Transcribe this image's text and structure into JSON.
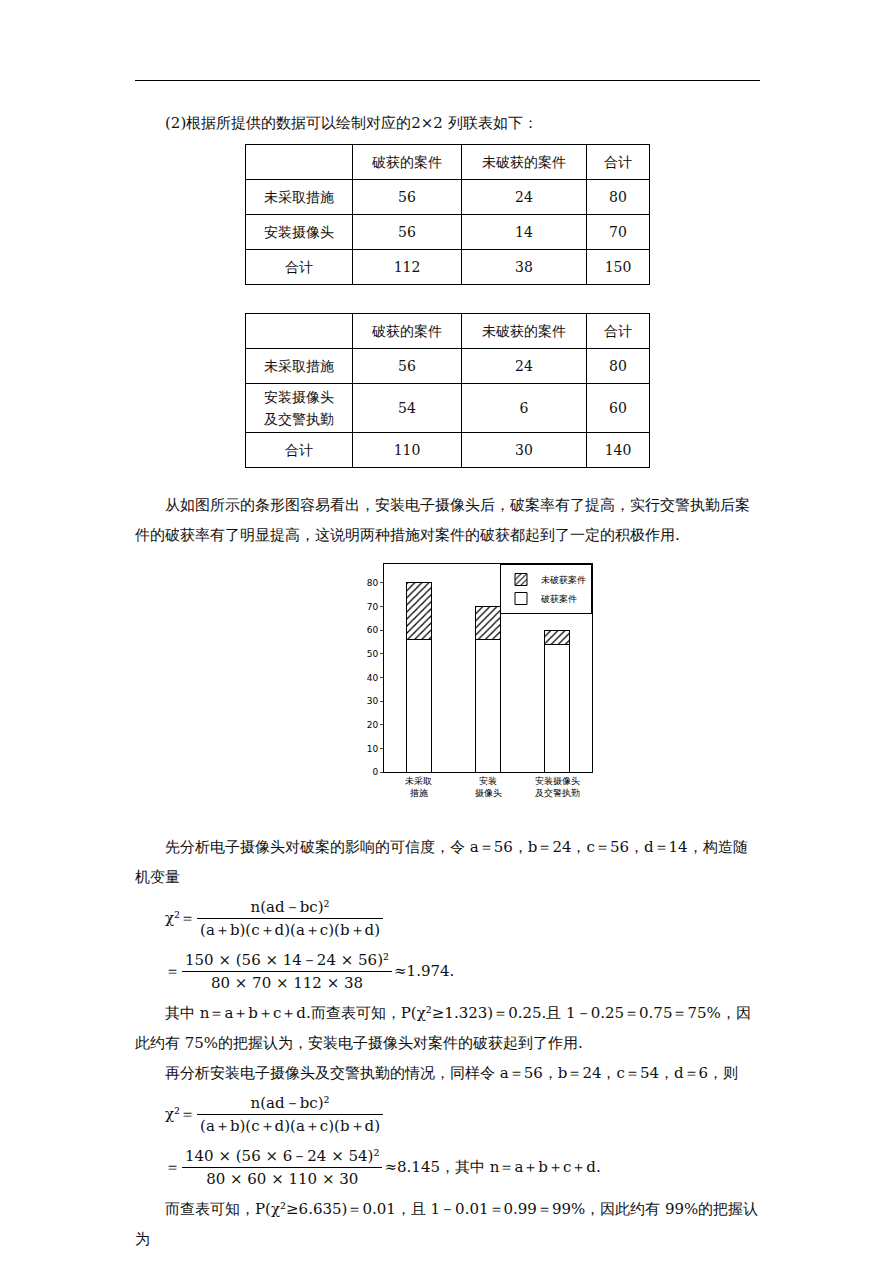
{
  "intro": "(2)根据所提供的数据可以绘制对应的2×2 列联表如下：",
  "tables": [
    {
      "header": [
        "",
        "破获的案件",
        "未破获的案件",
        "合计"
      ],
      "rows": [
        [
          "未采取措施",
          56,
          24,
          80
        ],
        [
          "安装摄像头",
          56,
          14,
          70
        ],
        [
          "合计",
          112,
          38,
          150
        ]
      ]
    },
    {
      "header": [
        "",
        "破获的案件",
        "未破获的案件",
        "合计"
      ],
      "rows": [
        [
          "未采取措施",
          56,
          24,
          80
        ],
        [
          "安装摄像头\n及交警执勤",
          54,
          6,
          60
        ],
        [
          "合计",
          110,
          30,
          140
        ]
      ]
    }
  ],
  "paragraph_1": "从如图所示的条形图容易看出，安装电子摄像头后，破案率有了提高，实行交警执勤后案件的破获率有了明显提高，这说明两种措施对案件的破获都起到了一定的积极作用.",
  "chart_data": {
    "type": "bar",
    "stacked": true,
    "categories": [
      "未采取\n措施",
      "安装\n摄像头",
      "安装摄像头\n及交警执勤"
    ],
    "series": [
      {
        "name": "破获案件",
        "color": "#ffffff",
        "values": [
          56,
          56,
          54
        ]
      },
      {
        "name": "未破获案件",
        "color": "#ffffff",
        "marker": "hatch",
        "values": [
          24,
          14,
          6
        ]
      }
    ],
    "ylim": [
      0,
      88
    ],
    "yticks": [
      0,
      10,
      20,
      30,
      40,
      50,
      60,
      70,
      80
    ],
    "grid": false,
    "legend": "upper right"
  },
  "paragraph_2": "先分析电子摄像头对破案的影响的可信度，令 a＝56，b＝24，c＝56，d＝14，构造随机变量",
  "formula_general": {
    "lhs": "χ²＝",
    "num": "n(ad－bc)²",
    "den": "(a＋b)(c＋d)(a＋c)(b＋d)"
  },
  "formula_1": {
    "lhs": "＝",
    "num": "150 × (56 × 14－24 × 56)²",
    "den": "80 × 70 × 112 × 38",
    "result": "≈1.974."
  },
  "paragraph_3": "其中 n＝a＋b＋c＋d.而查表可知，P(χ²≥1.323)＝0.25.且 1－0.25＝0.75＝75%，因此约有 75%的把握认为，安装电子摄像头对案件的破获起到了作用.",
  "paragraph_4": "再分析安装电子摄像头及交警执勤的情况，同样令 a＝56，b＝24，c＝54，d＝6，则",
  "formula_2": {
    "lhs": "＝",
    "num": "140 × (56 × 6－24 × 54)²",
    "den": "80 × 60 × 110 × 30",
    "result": "≈8.145，其中 n＝a＋b＋c＋d."
  },
  "paragraph_5": "而查表可知，P(χ²≥6.635)＝0.01，且 1－0.01＝0.99＝99%，因此约有 99%的把握认为"
}
